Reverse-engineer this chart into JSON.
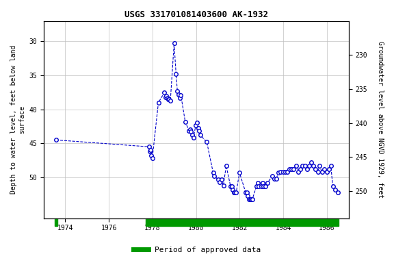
{
  "title": "USGS 331701081403600 AK-1932",
  "ylabel_left": "Depth to water level, feet below land\nsurface",
  "ylabel_right": "Groundwater level above NGVD 1929, feet",
  "xlim": [
    1973.0,
    1987.0
  ],
  "ylim_left": [
    27,
    56
  ],
  "ylim_right": [
    225,
    254
  ],
  "yticks_left": [
    30,
    35,
    40,
    45,
    50
  ],
  "yticks_right": [
    230,
    235,
    240,
    245,
    250
  ],
  "xticks": [
    1974,
    1976,
    1978,
    1980,
    1982,
    1984,
    1986
  ],
  "data_color": "#0000CC",
  "approved_color": "#009900",
  "approved_periods_x": [
    [
      1977.7,
      1986.55
    ]
  ],
  "unapproved_periods_x": [
    [
      1973.5,
      1973.65
    ]
  ],
  "data_x": [
    1973.58,
    1977.83,
    1977.88,
    1977.91,
    1977.95,
    1977.99,
    1978.27,
    1978.55,
    1978.6,
    1978.64,
    1978.68,
    1978.73,
    1978.77,
    1978.82,
    1978.99,
    1979.08,
    1979.14,
    1979.19,
    1979.25,
    1979.3,
    1979.5,
    1979.68,
    1979.73,
    1979.77,
    1979.82,
    1979.87,
    1979.99,
    1980.04,
    1980.09,
    1980.14,
    1980.19,
    1980.49,
    1980.78,
    1980.84,
    1981.0,
    1981.08,
    1981.16,
    1981.25,
    1981.38,
    1981.58,
    1981.63,
    1981.68,
    1981.73,
    1981.78,
    1981.84,
    1981.99,
    1982.27,
    1982.32,
    1982.37,
    1982.42,
    1982.48,
    1982.53,
    1982.58,
    1982.77,
    1982.83,
    1982.88,
    1982.99,
    1983.05,
    1983.1,
    1983.19,
    1983.28,
    1983.49,
    1983.58,
    1983.68,
    1983.77,
    1983.87,
    1983.99,
    1984.09,
    1984.18,
    1984.27,
    1984.37,
    1984.48,
    1984.58,
    1984.68,
    1984.77,
    1984.87,
    1984.99,
    1985.08,
    1985.18,
    1985.27,
    1985.37,
    1985.48,
    1985.58,
    1985.67,
    1985.77,
    1985.87,
    1985.99,
    1986.09,
    1986.18,
    1986.27,
    1986.37,
    1986.49
  ],
  "data_y": [
    44.5,
    45.5,
    46.2,
    46.0,
    46.8,
    47.2,
    39.0,
    37.5,
    38.2,
    38.0,
    38.3,
    38.5,
    38.5,
    38.7,
    30.3,
    34.8,
    37.3,
    37.8,
    38.3,
    37.9,
    41.8,
    43.2,
    43.0,
    43.3,
    43.8,
    44.2,
    42.3,
    41.9,
    42.8,
    43.2,
    43.8,
    44.8,
    49.3,
    49.8,
    50.3,
    50.7,
    50.3,
    51.2,
    48.3,
    51.3,
    51.3,
    51.8,
    52.2,
    52.2,
    52.2,
    49.3,
    52.2,
    52.2,
    52.7,
    53.2,
    53.2,
    53.2,
    53.2,
    51.3,
    50.8,
    51.3,
    51.3,
    50.8,
    51.3,
    51.3,
    50.8,
    49.8,
    50.2,
    50.2,
    49.3,
    49.2,
    49.2,
    49.2,
    49.2,
    48.8,
    48.8,
    48.8,
    48.3,
    49.2,
    48.8,
    48.3,
    48.3,
    48.8,
    48.3,
    47.8,
    48.3,
    48.8,
    49.2,
    48.3,
    49.2,
    48.8,
    49.2,
    48.8,
    48.3,
    51.3,
    51.8,
    52.2
  ],
  "background_color": "#ffffff",
  "grid_color": "#c0c0c0",
  "legend_label": "Period of approved data"
}
